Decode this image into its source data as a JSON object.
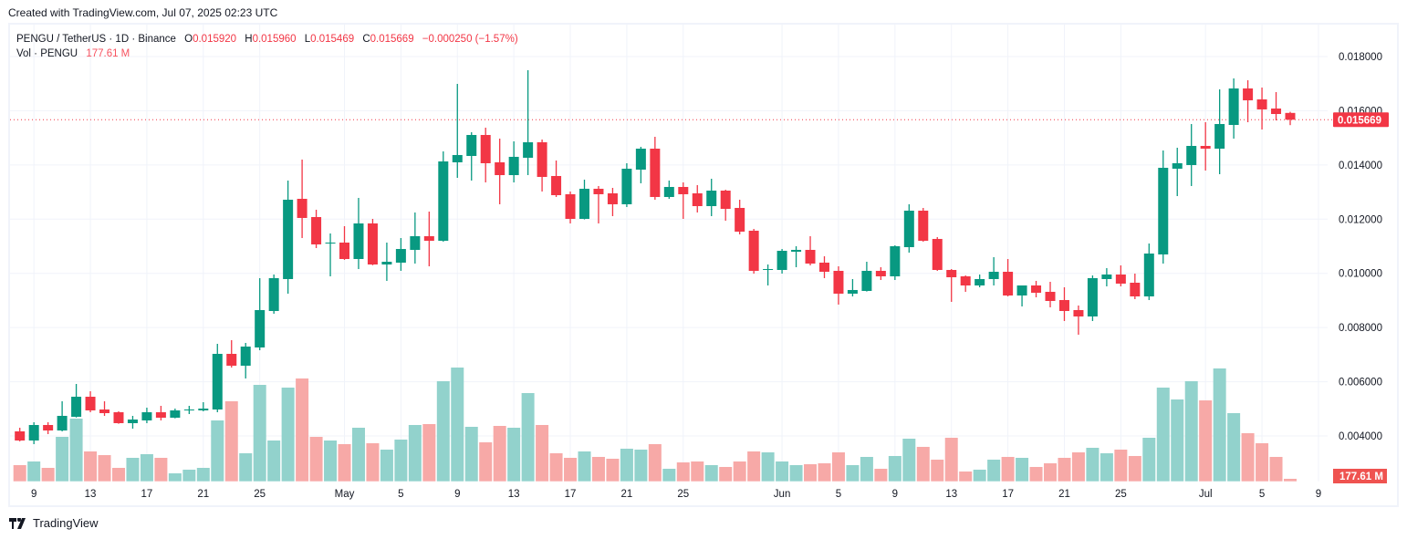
{
  "header": {
    "created": "Created with TradingView.com, Jul 07, 2025 02:23 UTC"
  },
  "legend": {
    "symbol": "PENGU / TetherUS · 1D · Binance",
    "o_label": "O",
    "o": "0.015920",
    "h_label": "H",
    "h": "0.015960",
    "l_label": "L",
    "l": "0.015469",
    "c_label": "C",
    "c": "0.015669",
    "change": "−0.000250 (−1.57%)",
    "vol_label": "Vol · PENGU",
    "vol": "177.61 M"
  },
  "footer": {
    "brand": "TradingView"
  },
  "colors": {
    "up": "#089981",
    "down": "#f23645",
    "vol_up": "#92d2cc",
    "vol_down": "#f7a9a7",
    "grid": "#f0f3fa"
  },
  "chart_data": {
    "type": "candlestick",
    "ylim": [
      0.0032,
      0.0186
    ],
    "price_ticks": [
      "0.018000",
      "0.016000",
      "0.014000",
      "0.012000",
      "0.010000",
      "0.008000",
      "0.006000",
      "0.004000"
    ],
    "last_price_label": "0.015669",
    "last_volume_label": "177.61 M",
    "volume_unit": "M",
    "x_ticks": [
      {
        "label": "9",
        "date": "2025-04-09"
      },
      {
        "label": "13",
        "date": "2025-04-13"
      },
      {
        "label": "17",
        "date": "2025-04-17"
      },
      {
        "label": "21",
        "date": "2025-04-21"
      },
      {
        "label": "25",
        "date": "2025-04-25"
      },
      {
        "label": "May",
        "date": "2025-05-01"
      },
      {
        "label": "5",
        "date": "2025-05-05"
      },
      {
        "label": "9",
        "date": "2025-05-09"
      },
      {
        "label": "13",
        "date": "2025-05-13"
      },
      {
        "label": "17",
        "date": "2025-05-17"
      },
      {
        "label": "21",
        "date": "2025-05-21"
      },
      {
        "label": "25",
        "date": "2025-05-25"
      },
      {
        "label": "Jun",
        "date": "2025-06-01"
      },
      {
        "label": "5",
        "date": "2025-06-05"
      },
      {
        "label": "9",
        "date": "2025-06-09"
      },
      {
        "label": "13",
        "date": "2025-06-13"
      },
      {
        "label": "17",
        "date": "2025-06-17"
      },
      {
        "label": "21",
        "date": "2025-06-21"
      },
      {
        "label": "25",
        "date": "2025-06-25"
      },
      {
        "label": "Jul",
        "date": "2025-07-01"
      },
      {
        "label": "5",
        "date": "2025-07-05"
      },
      {
        "label": "9",
        "date": "2025-07-09"
      }
    ],
    "columns": [
      "date",
      "open",
      "high",
      "low",
      "close",
      "volume"
    ],
    "candles": [
      [
        "2025-04-08",
        0.004169,
        0.004303,
        0.0038,
        0.003832,
        1165
      ],
      [
        "2025-04-09",
        0.003832,
        0.004506,
        0.003698,
        0.004404,
        1428
      ],
      [
        "2025-04-10",
        0.004404,
        0.004506,
        0.004068,
        0.004202,
        967
      ],
      [
        "2025-04-11",
        0.004202,
        0.005279,
        0.004169,
        0.004741,
        3204
      ],
      [
        "2025-04-12",
        0.004707,
        0.005919,
        0.00468,
        0.005447,
        4520
      ],
      [
        "2025-04-13",
        0.005447,
        0.005649,
        0.004875,
        0.004943,
        2152
      ],
      [
        "2025-04-14",
        0.004976,
        0.005279,
        0.004741,
        0.004842,
        1888
      ],
      [
        "2025-04-15",
        0.004875,
        0.004909,
        0.00445,
        0.004472,
        967
      ],
      [
        "2025-04-16",
        0.004472,
        0.004741,
        0.00427,
        0.004606,
        1691
      ],
      [
        "2025-04-17",
        0.004573,
        0.005044,
        0.004472,
        0.004875,
        1954
      ],
      [
        "2025-04-18",
        0.004875,
        0.005111,
        0.004573,
        0.004673,
        1691
      ],
      [
        "2025-04-19",
        0.004673,
        0.00501,
        0.00465,
        0.004943,
        572
      ],
      [
        "2025-04-20",
        0.004943,
        0.005111,
        0.004808,
        0.004976,
        836
      ],
      [
        "2025-04-21",
        0.004943,
        0.005246,
        0.004909,
        0.00501,
        967
      ],
      [
        "2025-04-22",
        0.004976,
        0.007399,
        0.004875,
        0.007029,
        4389
      ],
      [
        "2025-04-23",
        0.007029,
        0.007534,
        0.006524,
        0.006592,
        5771
      ],
      [
        "2025-04-24",
        0.006592,
        0.007433,
        0.006121,
        0.007298,
        2020
      ],
      [
        "2025-04-25",
        0.007265,
        0.009823,
        0.007164,
        0.008645,
        6955
      ],
      [
        "2025-04-26",
        0.008611,
        0.009957,
        0.00851,
        0.009823,
        2941
      ],
      [
        "2025-04-27",
        0.009789,
        0.013424,
        0.00925,
        0.012717,
        6758
      ],
      [
        "2025-04-28",
        0.01275,
        0.014198,
        0.011303,
        0.012044,
        7416
      ],
      [
        "2025-04-29",
        0.012077,
        0.012347,
        0.010933,
        0.011068,
        3204
      ],
      [
        "2025-04-30",
        0.011101,
        0.011472,
        0.00989,
        0.011135,
        2941
      ],
      [
        "2025-05-01",
        0.011135,
        0.011741,
        0.010496,
        0.010529,
        2678
      ],
      [
        "2025-05-02",
        0.010529,
        0.012784,
        0.010159,
        0.011842,
        3862
      ],
      [
        "2025-05-03",
        0.011842,
        0.01201,
        0.0103,
        0.010327,
        2744
      ],
      [
        "2025-05-04",
        0.010327,
        0.011135,
        0.009722,
        0.010428,
        2283
      ],
      [
        "2025-05-05",
        0.010395,
        0.011303,
        0.010092,
        0.010899,
        3007
      ],
      [
        "2025-05-06",
        0.010866,
        0.012246,
        0.010361,
        0.011371,
        4060
      ],
      [
        "2025-05-07",
        0.011371,
        0.012279,
        0.01026,
        0.011202,
        4126
      ],
      [
        "2025-05-08",
        0.011202,
        0.0145,
        0.01117,
        0.01413,
        7218
      ],
      [
        "2025-05-09",
        0.014097,
        0.016991,
        0.013524,
        0.014366,
        8205
      ],
      [
        "2025-05-10",
        0.014332,
        0.015207,
        0.013424,
        0.015106,
        3928
      ],
      [
        "2025-05-11",
        0.015106,
        0.015375,
        0.013356,
        0.014063,
        2810
      ],
      [
        "2025-05-12",
        0.014097,
        0.014972,
        0.012549,
        0.013625,
        3994
      ],
      [
        "2025-05-13",
        0.013625,
        0.014871,
        0.013356,
        0.014299,
        3862
      ],
      [
        "2025-05-14",
        0.014265,
        0.017496,
        0.013625,
        0.014837,
        6363
      ],
      [
        "2025-05-15",
        0.014837,
        0.014938,
        0.01302,
        0.013558,
        4060
      ],
      [
        "2025-05-16",
        0.013592,
        0.014164,
        0.012818,
        0.012885,
        2020
      ],
      [
        "2025-05-17",
        0.012919,
        0.01302,
        0.011842,
        0.01201,
        1691
      ],
      [
        "2025-05-18",
        0.01201,
        0.013457,
        0.01199,
        0.013121,
        2152
      ],
      [
        "2025-05-19",
        0.013121,
        0.013222,
        0.011842,
        0.012919,
        1757
      ],
      [
        "2025-05-20",
        0.012952,
        0.013154,
        0.012111,
        0.012549,
        1625
      ],
      [
        "2025-05-21",
        0.012549,
        0.014063,
        0.012448,
        0.013861,
        2349
      ],
      [
        "2025-05-22",
        0.013827,
        0.014669,
        0.013323,
        0.014601,
        2283
      ],
      [
        "2025-05-23",
        0.014601,
        0.015039,
        0.012717,
        0.012818,
        2678
      ],
      [
        "2025-05-24",
        0.012818,
        0.013424,
        0.01275,
        0.013188,
        901
      ],
      [
        "2025-05-25",
        0.013188,
        0.013356,
        0.01201,
        0.012919,
        1362
      ],
      [
        "2025-05-26",
        0.012952,
        0.013255,
        0.012246,
        0.012481,
        1428
      ],
      [
        "2025-05-27",
        0.012481,
        0.013491,
        0.012111,
        0.013053,
        1165
      ],
      [
        "2025-05-28",
        0.013053,
        0.013087,
        0.011943,
        0.01238,
        1033
      ],
      [
        "2025-05-29",
        0.012414,
        0.012717,
        0.011438,
        0.011539,
        1428
      ],
      [
        "2025-05-30",
        0.011573,
        0.01164,
        0.009991,
        0.010092,
        2152
      ],
      [
        "2025-05-31",
        0.010125,
        0.010327,
        0.009553,
        0.010159,
        2086
      ],
      [
        "2025-06-01",
        0.010125,
        0.010899,
        0.009991,
        0.010832,
        1428
      ],
      [
        "2025-06-02",
        0.010798,
        0.011,
        0.010226,
        0.010866,
        1165
      ],
      [
        "2025-06-03",
        0.010866,
        0.011371,
        0.010294,
        0.010361,
        1230
      ],
      [
        "2025-06-04",
        0.010395,
        0.01063,
        0.009823,
        0.010058,
        1296
      ],
      [
        "2025-06-05",
        0.010092,
        0.01026,
        0.008847,
        0.00925,
        2086
      ],
      [
        "2025-06-06",
        0.00925,
        0.009789,
        0.009149,
        0.009385,
        1165
      ],
      [
        "2025-06-07",
        0.009351,
        0.010428,
        0.00933,
        0.010092,
        1757
      ],
      [
        "2025-06-08",
        0.010092,
        0.010226,
        0.009755,
        0.00989,
        901
      ],
      [
        "2025-06-09",
        0.00989,
        0.011034,
        0.009755,
        0.011,
        1823
      ],
      [
        "2025-06-10",
        0.010967,
        0.012549,
        0.010765,
        0.012313,
        3073
      ],
      [
        "2025-06-11",
        0.012313,
        0.012414,
        0.011169,
        0.011202,
        2481
      ],
      [
        "2025-06-12",
        0.01127,
        0.011337,
        0.01009,
        0.010125,
        1559
      ],
      [
        "2025-06-13",
        0.010125,
        0.010159,
        0.008948,
        0.009856,
        3139
      ],
      [
        "2025-06-14",
        0.00989,
        0.009923,
        0.009318,
        0.009553,
        704
      ],
      [
        "2025-06-15",
        0.009553,
        0.009957,
        0.009486,
        0.009789,
        836
      ],
      [
        "2025-06-16",
        0.009789,
        0.010597,
        0.009553,
        0.010058,
        1559
      ],
      [
        "2025-06-17",
        0.010058,
        0.010529,
        0.009149,
        0.009183,
        1757
      ],
      [
        "2025-06-18",
        0.009183,
        0.009553,
        0.008779,
        0.009553,
        1691
      ],
      [
        "2025-06-19",
        0.009553,
        0.009722,
        0.009116,
        0.009284,
        1033
      ],
      [
        "2025-06-20",
        0.009318,
        0.009688,
        0.008746,
        0.008981,
        1296
      ],
      [
        "2025-06-21",
        0.009015,
        0.009486,
        0.008241,
        0.008611,
        1691
      ],
      [
        "2025-06-22",
        0.008645,
        0.008813,
        0.007736,
        0.008409,
        2086
      ],
      [
        "2025-06-23",
        0.008409,
        0.009923,
        0.008241,
        0.009823,
        2415
      ],
      [
        "2025-06-24",
        0.009789,
        0.010193,
        0.00952,
        0.009957,
        2020
      ],
      [
        "2025-06-25",
        0.009957,
        0.010294,
        0.00952,
        0.009621,
        2283
      ],
      [
        "2025-06-26",
        0.009654,
        0.009991,
        0.009048,
        0.009149,
        1823
      ],
      [
        "2025-06-27",
        0.009149,
        0.011101,
        0.009015,
        0.010731,
        3139
      ],
      [
        "2025-06-28",
        0.010698,
        0.014534,
        0.010361,
        0.013895,
        6758
      ],
      [
        "2025-06-29",
        0.013861,
        0.014635,
        0.012851,
        0.014063,
        5902
      ],
      [
        "2025-06-30",
        0.013996,
        0.01551,
        0.013222,
        0.014702,
        7218
      ],
      [
        "2025-07-01",
        0.014702,
        0.015577,
        0.013794,
        0.014601,
        5836
      ],
      [
        "2025-07-02",
        0.014601,
        0.016789,
        0.013659,
        0.01551,
        8139
      ],
      [
        "2025-07-03",
        0.015476,
        0.017193,
        0.014972,
        0.016823,
        4915
      ],
      [
        "2025-07-04",
        0.016823,
        0.017125,
        0.015577,
        0.016385,
        3468
      ],
      [
        "2025-07-05",
        0.016419,
        0.016856,
        0.015308,
        0.016049,
        2744
      ],
      [
        "2025-07-06",
        0.016082,
        0.016688,
        0.015645,
        0.01588,
        1757
      ],
      [
        "2025-07-07",
        0.01592,
        0.01596,
        0.015469,
        0.015669,
        177.61
      ]
    ]
  }
}
